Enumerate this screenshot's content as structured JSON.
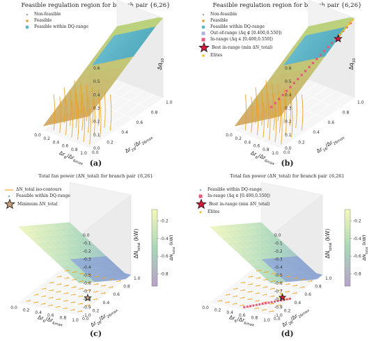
{
  "colors": {
    "surface_low": "#d4a35c",
    "surface_high": "#b8cf74",
    "dq_region": "#5bb6c9",
    "nonfeasible": "#9aa6b8",
    "out_of_range": "#b0b0e0",
    "in_range": "#e45a7a",
    "best": "#d81b3c",
    "elite": "#f0c020",
    "contour": "#f5a623",
    "field_high": "#f2f6b8",
    "field_low": "#b9a3c8"
  },
  "panels": {
    "a": {
      "title": "Feasible regulation region for branch pair {6,26}",
      "letter": "(a)",
      "legend": [
        "Non-feasible",
        "Feasible",
        "Feasible within DQ-range"
      ]
    },
    "b": {
      "title": "Feasible regulation region for branch pair {6,26}",
      "letter": "(b)",
      "legend": [
        "Non-feasible",
        "Feasible",
        "Feasible within DQ-range",
        "Out-of-range (Δq ∉ [0.400,0.550])",
        "In-range (Δq ∈ [0.400,0.550])",
        "Best in-range (min ΔN_total)",
        "Elites"
      ]
    },
    "c": {
      "title": "Total fan power (ΔN_total) for branch pair {6,26}",
      "letter": "(c)",
      "legend": [
        "ΔN_total iso-contours",
        "Feasible within DQ-range",
        "Minimum ΔN_total"
      ]
    },
    "d": {
      "title": "Total fan power (ΔN_total) for branch pair {6,26}",
      "letter": "(d)",
      "legend": [
        "Feasible within DQ-range",
        "In-range (Δq ∈ [0.400,0.550])",
        "Best in-range (min ΔN_total)",
        "Elites"
      ]
    }
  },
  "chart_data": [
    {
      "id": "a",
      "type": "surface3d",
      "title": "Feasible regulation region for branch pair {6,26}",
      "xlabel": "Δr_6/Δr_6max",
      "ylabel": "Δr_26/Δr_26max",
      "zlabel": "Δq_10",
      "x_ticks": [
        "0.0",
        "0.2",
        "0.4",
        "0.6",
        "0.8",
        "1.0"
      ],
      "y_ticks": [
        "0.0",
        "0.2",
        "0.4",
        "0.6",
        "0.8",
        "1.0"
      ],
      "z_ticks": [
        "0.0",
        "0.1",
        "0.2",
        "0.3",
        "0.4",
        "0.5",
        "0.6"
      ],
      "xlim": [
        0,
        1
      ],
      "ylim": [
        0,
        1
      ],
      "zlim": [
        0,
        0.6
      ],
      "series": [
        {
          "name": "Non-feasible"
        },
        {
          "name": "Feasible"
        },
        {
          "name": "Feasible within DQ-range"
        }
      ],
      "legend_position": "top-left"
    },
    {
      "id": "b",
      "type": "surface3d",
      "title": "Feasible regulation region for branch pair {6,26}",
      "xlabel": "Δr_6/Δr_6max",
      "ylabel": "Δr_26/Δr_26max",
      "zlabel": "Δq_10",
      "x_ticks": [
        "0.0",
        "0.2",
        "0.4",
        "0.6",
        "0.8",
        "1.0"
      ],
      "y_ticks": [
        "0.0",
        "0.2",
        "0.4",
        "0.6",
        "0.8",
        "1.0"
      ],
      "z_ticks": [
        "0.0",
        "0.1",
        "0.2",
        "0.3",
        "0.4",
        "0.5",
        "0.6"
      ],
      "xlim": [
        0,
        1
      ],
      "ylim": [
        0,
        1
      ],
      "zlim": [
        0,
        0.6
      ],
      "in_range_band": [
        0.4,
        0.55
      ],
      "series": [
        {
          "name": "Non-feasible"
        },
        {
          "name": "Feasible"
        },
        {
          "name": "Feasible within DQ-range"
        },
        {
          "name": "Out-of-range (Δq ∉ [0.400,0.550])"
        },
        {
          "name": "In-range (Δq ∈ [0.400,0.550])"
        },
        {
          "name": "Best in-range (min ΔN_total)"
        },
        {
          "name": "Elites"
        }
      ],
      "legend_position": "top-left"
    },
    {
      "id": "c",
      "type": "surface3d",
      "title": "Total fan power (ΔN_total) for branch pair {6,26}",
      "xlabel": "Δr_6/Δr_6max",
      "ylabel": "Δr_26/Δr_26max",
      "zlabel": "ΔN_total (kW)",
      "colorbar_label": "ΔN_total (kW)",
      "x_ticks": [
        "0.0",
        "0.2",
        "0.4",
        "0.6",
        "0.8",
        "1.0"
      ],
      "y_ticks": [
        "0.0",
        "0.2",
        "0.4",
        "0.6",
        "0.8",
        "1.0"
      ],
      "z_ticks": [
        "0.0",
        "-0.1",
        "-0.2",
        "-0.3",
        "-0.4",
        "-0.5",
        "-0.6",
        "-0.7",
        "-0.8",
        "-0.9",
        "-1.0"
      ],
      "colorbar_ticks": [
        "-0.2",
        "-0.4",
        "-0.6",
        "-0.8"
      ],
      "xlim": [
        0,
        1
      ],
      "ylim": [
        0,
        1
      ],
      "zlim": [
        -1.0,
        0.0
      ],
      "series": [
        {
          "name": "ΔN_total iso-contours"
        },
        {
          "name": "Feasible within DQ-range"
        },
        {
          "name": "Minimum ΔN_total"
        }
      ],
      "legend_position": "top-left"
    },
    {
      "id": "d",
      "type": "surface3d",
      "title": "Total fan power (ΔN_total) for branch pair {6,26}",
      "xlabel": "Δr_6/Δr_6max",
      "ylabel": "Δr_26/Δr_26max",
      "zlabel": "ΔN_total (kW)",
      "colorbar_label": "ΔN_total (kW)",
      "x_ticks": [
        "0.0",
        "0.2",
        "0.4",
        "0.6",
        "0.8",
        "1.0"
      ],
      "y_ticks": [
        "0.0",
        "0.2",
        "0.4",
        "0.6",
        "0.8",
        "1.0"
      ],
      "z_ticks": [
        "0.0",
        "-0.1",
        "-0.2",
        "-0.3",
        "-0.4",
        "-0.5",
        "-0.6",
        "-0.7",
        "-0.8",
        "-0.9",
        "-1.0"
      ],
      "colorbar_ticks": [
        "-0.2",
        "-0.4",
        "-0.6",
        "-0.8"
      ],
      "xlim": [
        0,
        1
      ],
      "ylim": [
        0,
        1
      ],
      "zlim": [
        -1.0,
        0.0
      ],
      "series": [
        {
          "name": "Feasible within DQ-range"
        },
        {
          "name": "In-range (Δq ∈ [0.400,0.550])"
        },
        {
          "name": "Best in-range (min ΔN_total)"
        },
        {
          "name": "Elites"
        }
      ],
      "legend_position": "top-left"
    }
  ]
}
